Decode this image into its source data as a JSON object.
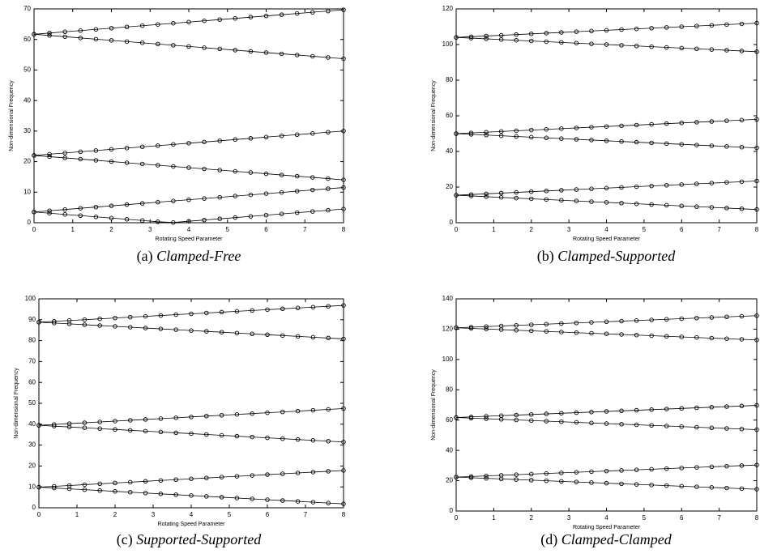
{
  "chart_data": [
    {
      "type": "line",
      "label": "(a)",
      "caption": "Clamped-Free",
      "xlabel": "Rotating Speed Parameter",
      "ylabel": "Non-dimensional Frequency",
      "x": [
        0,
        0.4,
        0.8,
        1.2,
        1.6,
        2.0,
        2.4,
        2.8,
        3.2,
        3.6,
        4.0,
        4.4,
        4.8,
        5.2,
        5.6,
        6.0,
        6.4,
        6.8,
        7.2,
        7.6,
        8.0
      ],
      "xlim": [
        0,
        8
      ],
      "xticks": [
        0,
        1,
        2,
        3,
        4,
        5,
        6,
        7,
        8
      ],
      "ylim": [
        0,
        70
      ],
      "yticks": [
        0,
        10,
        20,
        30,
        40,
        50,
        60,
        70
      ],
      "series": [
        {
          "color": "#000000",
          "values": [
            3.52,
            3.92,
            4.32,
            4.72,
            5.12,
            5.52,
            5.92,
            6.32,
            6.72,
            7.12,
            7.52,
            7.92,
            8.32,
            8.72,
            9.12,
            9.52,
            9.92,
            10.32,
            10.72,
            11.12,
            11.52
          ]
        },
        {
          "color": "#000000",
          "values": [
            3.52,
            3.12,
            2.72,
            2.32,
            1.92,
            1.52,
            1.12,
            0.72,
            0.32,
            0.08,
            0.48,
            0.88,
            1.28,
            1.68,
            2.08,
            2.48,
            2.88,
            3.28,
            3.68,
            4.08,
            4.48
          ]
        },
        {
          "color": "#000000",
          "values": [
            22.03,
            22.43,
            22.83,
            23.23,
            23.63,
            24.03,
            24.43,
            24.83,
            25.23,
            25.63,
            26.03,
            26.43,
            26.83,
            27.23,
            27.63,
            28.03,
            28.43,
            28.83,
            29.23,
            29.63,
            30.03
          ]
        },
        {
          "color": "#000000",
          "values": [
            22.03,
            21.63,
            21.23,
            20.83,
            20.43,
            20.03,
            19.63,
            19.23,
            18.83,
            18.43,
            18.03,
            17.63,
            17.23,
            16.83,
            16.43,
            16.03,
            15.63,
            15.23,
            14.83,
            14.43,
            14.03
          ]
        },
        {
          "color": "#000000",
          "values": [
            61.7,
            62.1,
            62.5,
            62.9,
            63.3,
            63.7,
            64.1,
            64.5,
            64.9,
            65.3,
            65.7,
            66.1,
            66.5,
            66.9,
            67.3,
            67.7,
            68.1,
            68.5,
            68.9,
            69.3,
            69.7
          ]
        },
        {
          "color": "#000000",
          "values": [
            61.7,
            61.3,
            60.9,
            60.5,
            60.1,
            59.7,
            59.3,
            58.9,
            58.5,
            58.1,
            57.7,
            57.3,
            56.9,
            56.5,
            56.1,
            55.7,
            55.3,
            54.9,
            54.5,
            54.1,
            53.7
          ]
        }
      ]
    },
    {
      "type": "line",
      "label": "(b)",
      "caption": "Clamped-Supported",
      "xlabel": "Rotating Speed Parameter",
      "ylabel": "Non-dimensional Frequency",
      "x": [
        0,
        0.4,
        0.8,
        1.2,
        1.6,
        2.0,
        2.4,
        2.8,
        3.2,
        3.6,
        4.0,
        4.4,
        4.8,
        5.2,
        5.6,
        6.0,
        6.4,
        6.8,
        7.2,
        7.6,
        8.0
      ],
      "xlim": [
        0,
        8
      ],
      "xticks": [
        0,
        1,
        2,
        3,
        4,
        5,
        6,
        7,
        8
      ],
      "ylim": [
        0,
        120
      ],
      "yticks": [
        0,
        20,
        40,
        60,
        80,
        100,
        120
      ],
      "series": [
        {
          "color": "#000000",
          "values": [
            15.42,
            15.82,
            16.22,
            16.62,
            17.02,
            17.42,
            17.82,
            18.22,
            18.62,
            19.02,
            19.42,
            19.82,
            20.22,
            20.62,
            21.02,
            21.42,
            21.82,
            22.22,
            22.62,
            23.02,
            23.42
          ]
        },
        {
          "color": "#000000",
          "values": [
            15.42,
            15.02,
            14.62,
            14.22,
            13.82,
            13.42,
            13.02,
            12.62,
            12.22,
            11.82,
            11.42,
            11.02,
            10.62,
            10.22,
            9.82,
            9.42,
            9.02,
            8.62,
            8.22,
            7.82,
            7.42
          ]
        },
        {
          "color": "#000000",
          "values": [
            50,
            50.4,
            50.8,
            51.2,
            51.6,
            52,
            52.4,
            52.8,
            53.2,
            53.6,
            54,
            54.4,
            54.8,
            55.2,
            55.6,
            56,
            56.4,
            56.8,
            57.2,
            57.6,
            58
          ]
        },
        {
          "color": "#000000",
          "values": [
            50,
            49.6,
            49.2,
            48.8,
            48.4,
            48,
            47.6,
            47.2,
            46.8,
            46.4,
            46,
            45.6,
            45.2,
            44.8,
            44.4,
            44,
            43.6,
            43.2,
            42.8,
            42.4,
            42
          ]
        },
        {
          "color": "#000000",
          "values": [
            104,
            104.4,
            104.8,
            105.2,
            105.6,
            106,
            106.4,
            106.8,
            107.2,
            107.6,
            108,
            108.4,
            108.8,
            109.2,
            109.6,
            110,
            110.4,
            110.8,
            111.2,
            111.6,
            112
          ]
        },
        {
          "color": "#000000",
          "values": [
            104,
            103.6,
            103.2,
            102.8,
            102.4,
            102,
            101.6,
            101.2,
            100.8,
            100.4,
            100,
            99.6,
            99.2,
            98.8,
            98.4,
            98,
            97.6,
            97.2,
            96.8,
            96.4,
            96
          ]
        }
      ]
    },
    {
      "type": "line",
      "label": "(c)",
      "caption": "Supported-Supported",
      "xlabel": "Rotating Speed Parameter",
      "ylabel": "Non-dimensional Frequency",
      "x": [
        0,
        0.4,
        0.8,
        1.2,
        1.6,
        2.0,
        2.4,
        2.8,
        3.2,
        3.6,
        4.0,
        4.4,
        4.8,
        5.2,
        5.6,
        6.0,
        6.4,
        6.8,
        7.2,
        7.6,
        8.0
      ],
      "xlim": [
        0,
        8
      ],
      "xticks": [
        0,
        1,
        2,
        3,
        4,
        5,
        6,
        7,
        8
      ],
      "ylim": [
        0,
        100
      ],
      "yticks": [
        0,
        10,
        20,
        30,
        40,
        50,
        60,
        70,
        80,
        90,
        100
      ],
      "series": [
        {
          "color": "#000000",
          "values": [
            9.87,
            10.27,
            10.67,
            11.07,
            11.47,
            11.87,
            12.27,
            12.67,
            13.07,
            13.47,
            13.87,
            14.27,
            14.67,
            15.07,
            15.47,
            15.87,
            16.27,
            16.67,
            17.07,
            17.47,
            17.87
          ]
        },
        {
          "color": "#000000",
          "values": [
            9.87,
            9.47,
            9.07,
            8.67,
            8.27,
            7.87,
            7.47,
            7.07,
            6.67,
            6.27,
            5.87,
            5.47,
            5.07,
            4.67,
            4.27,
            3.87,
            3.47,
            3.07,
            2.67,
            2.27,
            1.87
          ]
        },
        {
          "color": "#000000",
          "values": [
            39.48,
            39.88,
            40.28,
            40.68,
            41.08,
            41.48,
            41.88,
            42.28,
            42.68,
            43.08,
            43.48,
            43.88,
            44.28,
            44.68,
            45.08,
            45.48,
            45.88,
            46.28,
            46.68,
            47.08,
            47.48
          ]
        },
        {
          "color": "#000000",
          "values": [
            39.48,
            39.08,
            38.68,
            38.28,
            37.88,
            37.48,
            37.08,
            36.68,
            36.28,
            35.88,
            35.48,
            35.08,
            34.68,
            34.28,
            33.88,
            33.48,
            33.08,
            32.68,
            32.28,
            31.88,
            31.48
          ]
        },
        {
          "color": "#000000",
          "values": [
            88.83,
            89.23,
            89.63,
            90.03,
            90.43,
            90.83,
            91.23,
            91.63,
            92.03,
            92.43,
            92.83,
            93.23,
            93.63,
            94.03,
            94.43,
            94.83,
            95.23,
            95.63,
            96.03,
            96.43,
            96.83
          ]
        },
        {
          "color": "#000000",
          "values": [
            88.83,
            88.43,
            88.03,
            87.63,
            87.23,
            86.83,
            86.43,
            86.03,
            85.63,
            85.23,
            84.83,
            84.43,
            84.03,
            83.63,
            83.23,
            82.83,
            82.43,
            82.03,
            81.63,
            81.23,
            80.83
          ]
        }
      ]
    },
    {
      "type": "line",
      "label": "(d)",
      "caption": "Clamped-Clamped",
      "xlabel": "Rotating Speed Parameter",
      "ylabel": "Non-dimensional Frequency",
      "x": [
        0,
        0.4,
        0.8,
        1.2,
        1.6,
        2.0,
        2.4,
        2.8,
        3.2,
        3.6,
        4.0,
        4.4,
        4.8,
        5.2,
        5.6,
        6.0,
        6.4,
        6.8,
        7.2,
        7.6,
        8.0
      ],
      "xlim": [
        0,
        8
      ],
      "xticks": [
        0,
        1,
        2,
        3,
        4,
        5,
        6,
        7,
        8
      ],
      "ylim": [
        0,
        140
      ],
      "yticks": [
        0,
        20,
        40,
        60,
        80,
        100,
        120,
        140
      ],
      "series": [
        {
          "color": "#000000",
          "values": [
            22.37,
            22.77,
            23.17,
            23.57,
            23.97,
            24.37,
            24.77,
            25.17,
            25.57,
            25.97,
            26.37,
            26.77,
            27.17,
            27.57,
            27.97,
            28.37,
            28.77,
            29.17,
            29.57,
            29.97,
            30.37
          ]
        },
        {
          "color": "#000000",
          "values": [
            22.37,
            21.97,
            21.57,
            21.17,
            20.77,
            20.37,
            19.97,
            19.57,
            19.17,
            18.77,
            18.37,
            17.97,
            17.57,
            17.17,
            16.77,
            16.37,
            15.97,
            15.57,
            15.17,
            14.77,
            14.37
          ]
        },
        {
          "color": "#000000",
          "values": [
            61.7,
            62.1,
            62.5,
            62.9,
            63.3,
            63.7,
            64.1,
            64.5,
            64.9,
            65.3,
            65.7,
            66.1,
            66.5,
            66.9,
            67.3,
            67.7,
            68.1,
            68.5,
            68.9,
            69.3,
            69.7
          ]
        },
        {
          "color": "#000000",
          "values": [
            61.7,
            61.3,
            60.9,
            60.5,
            60.1,
            59.7,
            59.3,
            58.9,
            58.5,
            58.1,
            57.7,
            57.3,
            56.9,
            56.5,
            56.1,
            55.7,
            55.3,
            54.9,
            54.5,
            54.1,
            53.7
          ]
        },
        {
          "color": "#000000",
          "values": [
            120.9,
            121.3,
            121.7,
            122.1,
            122.5,
            122.9,
            123.3,
            123.7,
            124.1,
            124.5,
            124.9,
            125.3,
            125.7,
            126.1,
            126.5,
            126.9,
            127.3,
            127.7,
            128.1,
            128.5,
            128.9
          ]
        },
        {
          "color": "#000000",
          "values": [
            120.9,
            120.5,
            120.1,
            119.7,
            119.3,
            118.9,
            118.5,
            118.1,
            117.7,
            117.3,
            116.9,
            116.5,
            116.1,
            115.7,
            115.3,
            114.9,
            114.5,
            114.1,
            113.7,
            113.3,
            112.9
          ]
        }
      ]
    }
  ]
}
